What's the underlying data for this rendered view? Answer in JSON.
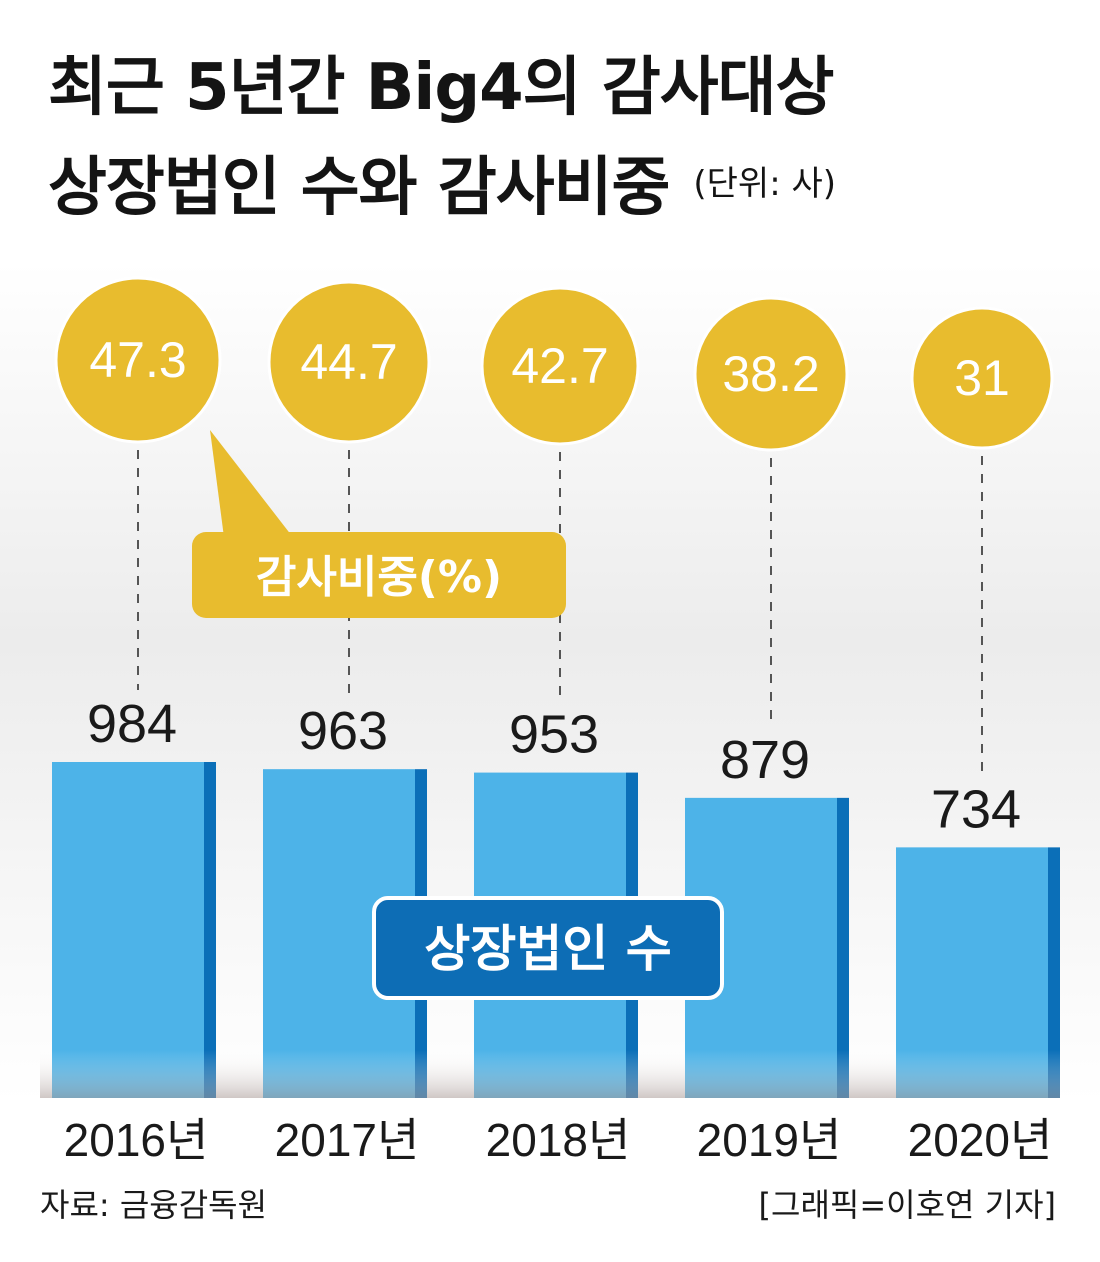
{
  "title_line1": "최근 5년간 Big4의 감사대상",
  "title_line2": "상장법인 수와 감사비중",
  "unit": "(단위: 사)",
  "source": "자료: 금융감독원",
  "credit": "[그래픽=이호연 기자]",
  "colors": {
    "bar": "#4db3e8",
    "bar_edge": "#0b6fb8",
    "bubble": "#e8bc2e",
    "label_box": "#e8bc2e",
    "series_box": "#0d6db5"
  },
  "chart_data": {
    "type": "bar",
    "categories": [
      "2016년",
      "2017년",
      "2018년",
      "2019년",
      "2020년"
    ],
    "series": [
      {
        "name": "상장법인 수",
        "values": [
          984,
          963,
          953,
          879,
          734
        ]
      },
      {
        "name": "감사비중(%)",
        "values": [
          47.3,
          44.7,
          42.7,
          38.2,
          31
        ]
      }
    ],
    "bar_value_labels": [
      "984",
      "963",
      "953",
      "879",
      "734"
    ],
    "ratio_labels": [
      "47.3",
      "44.7",
      "42.7",
      "38.2",
      "31"
    ],
    "ratio_series_label": "감사비중(%)",
    "count_series_label": "상장법인 수"
  }
}
